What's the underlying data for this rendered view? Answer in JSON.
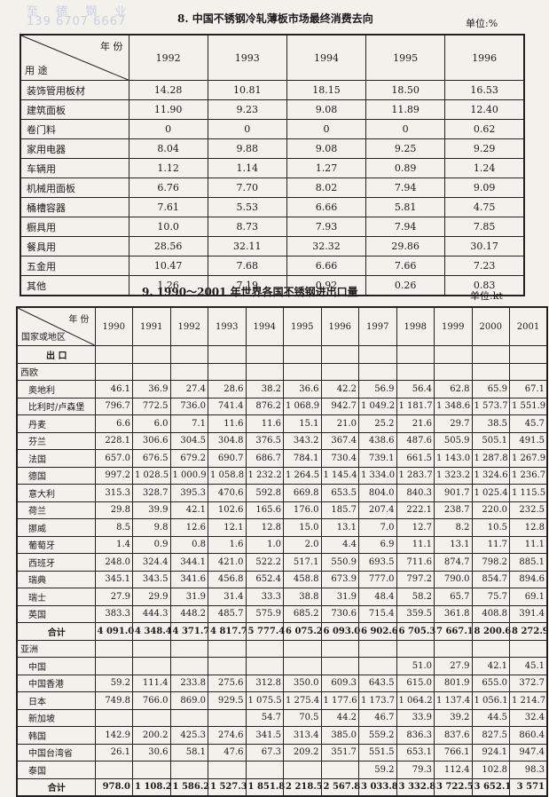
{
  "watermark": {
    "line1": "至 德 钢 业",
    "line2": "139 6707 6667"
  },
  "table1": {
    "title": "8. 中国不锈钢冷轧薄板市场最终消费去向",
    "unit": "单位:%",
    "corner_top": "年 份",
    "corner_bottom": "用 途",
    "years": [
      "1992",
      "1993",
      "1994",
      "1995",
      "1996"
    ],
    "rows": [
      {
        "label": "装饰管用板材",
        "values": [
          "14.28",
          "10.81",
          "18.15",
          "18.50",
          "16.53"
        ]
      },
      {
        "label": "建筑面板",
        "values": [
          "11.90",
          "9.23",
          "9.08",
          "11.89",
          "12.40"
        ]
      },
      {
        "label": "卷门料",
        "values": [
          "0",
          "0",
          "0",
          "0",
          "0.62"
        ]
      },
      {
        "label": "家用电器",
        "values": [
          "8.04",
          "9.88",
          "9.08",
          "9.25",
          "9.29"
        ]
      },
      {
        "label": "车辆用",
        "values": [
          "1.12",
          "1.14",
          "1.27",
          "0.89",
          "1.24"
        ]
      },
      {
        "label": "机械用面板",
        "values": [
          "6.76",
          "7.70",
          "8.02",
          "7.94",
          "9.09"
        ]
      },
      {
        "label": "桶槽容器",
        "values": [
          "7.61",
          "5.53",
          "6.66",
          "5.81",
          "4.75"
        ]
      },
      {
        "label": "橱具用",
        "values": [
          "10.0",
          "8.73",
          "7.93",
          "7.94",
          "7.85"
        ]
      },
      {
        "label": "餐具用",
        "values": [
          "28.56",
          "32.11",
          "32.32",
          "29.86",
          "30.17"
        ]
      },
      {
        "label": "五金用",
        "values": [
          "10.47",
          "7.68",
          "6.66",
          "7.66",
          "7.23"
        ]
      },
      {
        "label": "其他",
        "values": [
          "1.26",
          "7.19",
          "0.92",
          "0.26",
          "0.83"
        ]
      }
    ]
  },
  "table2": {
    "title": "9. 1990～2001 年世界各国不锈钢进出口量",
    "unit": "单位:kt",
    "corner_top": "年 份",
    "corner_bottom": "国家或地区",
    "years": [
      "1990",
      "1991",
      "1992",
      "1993",
      "1994",
      "1995",
      "1996",
      "1997",
      "1998",
      "1999",
      "2000",
      "2001"
    ],
    "rows": [
      {
        "label": "出 口",
        "type": "section"
      },
      {
        "label": "西欧",
        "type": "region"
      },
      {
        "label": "奥地利",
        "values": [
          "46.1",
          "36.9",
          "27.4",
          "28.6",
          "38.2",
          "36.6",
          "42.2",
          "56.9",
          "56.4",
          "62.8",
          "65.9",
          "67.1"
        ]
      },
      {
        "label": "比利时/卢森堡",
        "values": [
          "796.7",
          "772.5",
          "736.0",
          "741.4",
          "876.2",
          "1 068.9",
          "942.7",
          "1 049.2",
          "1 181.7",
          "1 348.6",
          "1 573.7",
          "1 551.9"
        ]
      },
      {
        "label": "丹麦",
        "values": [
          "6.6",
          "6.0",
          "7.1",
          "11.6",
          "11.6",
          "15.1",
          "21.0",
          "25.2",
          "21.6",
          "29.7",
          "38.5",
          "45.7"
        ]
      },
      {
        "label": "芬兰",
        "values": [
          "228.1",
          "306.6",
          "304.5",
          "304.8",
          "376.5",
          "343.2",
          "367.4",
          "438.6",
          "487.6",
          "505.9",
          "505.1",
          "491.5"
        ]
      },
      {
        "label": "法国",
        "values": [
          "657.0",
          "676.5",
          "679.2",
          "690.7",
          "686.7",
          "784.1",
          "730.4",
          "739.1",
          "661.5",
          "1 143.0",
          "1 287.8",
          "1 267.9"
        ]
      },
      {
        "label": "德国",
        "values": [
          "997.2",
          "1 028.5",
          "1 000.9",
          "1 058.8",
          "1 232.2",
          "1 264.5",
          "1 145.4",
          "1 334.0",
          "1 283.7",
          "1 323.2",
          "1 324.6",
          "1 236.7"
        ]
      },
      {
        "label": "意大利",
        "values": [
          "315.3",
          "328.7",
          "395.3",
          "470.6",
          "592.8",
          "669.8",
          "653.5",
          "804.0",
          "840.3",
          "901.7",
          "1 025.4",
          "1 115.5"
        ]
      },
      {
        "label": "荷兰",
        "values": [
          "29.8",
          "39.9",
          "42.1",
          "102.6",
          "165.6",
          "176.0",
          "185.7",
          "207.4",
          "222.1",
          "238.7",
          "220.0",
          "232.5"
        ]
      },
      {
        "label": "挪威",
        "values": [
          "8.5",
          "9.8",
          "12.6",
          "12.1",
          "12.8",
          "15.0",
          "13.1",
          "7.0",
          "12.7",
          "8.2",
          "10.5",
          "12.8"
        ]
      },
      {
        "label": "葡萄牙",
        "values": [
          "1.4",
          "0.9",
          "0.8",
          "1.6",
          "1.0",
          "2.0",
          "4.4",
          "6.9",
          "11.1",
          "13.1",
          "11.7",
          "11.1"
        ]
      },
      {
        "label": "西班牙",
        "values": [
          "248.0",
          "324.4",
          "344.1",
          "421.0",
          "522.2",
          "517.1",
          "550.9",
          "693.5",
          "711.6",
          "874.7",
          "798.2",
          "885.1"
        ]
      },
      {
        "label": "瑞典",
        "values": [
          "345.1",
          "343.5",
          "341.6",
          "456.8",
          "652.4",
          "458.8",
          "673.9",
          "777.0",
          "797.2",
          "790.0",
          "854.7",
          "894.6"
        ]
      },
      {
        "label": "瑞士",
        "values": [
          "27.9",
          "29.9",
          "31.9",
          "31.4",
          "33.3",
          "38.8",
          "31.9",
          "48.4",
          "58.2",
          "65.7",
          "75.7",
          "69.1"
        ]
      },
      {
        "label": "英国",
        "values": [
          "383.3",
          "444.3",
          "448.2",
          "485.7",
          "575.9",
          "685.2",
          "730.6",
          "715.4",
          "359.5",
          "361.8",
          "408.8",
          "391.4"
        ]
      },
      {
        "label": "合计",
        "type": "sum",
        "values": [
          "4 091.0",
          "4 348.4",
          "4 371.7",
          "4 817.7",
          "5 777.4",
          "6 075.2",
          "6 093.0",
          "6 902.6",
          "6 705.3",
          "7 667.1",
          "8 200.6",
          "8 272.9"
        ]
      },
      {
        "label": "亚洲",
        "type": "region"
      },
      {
        "label": "中国",
        "values": [
          "",
          "",
          "",
          "",
          "",
          "",
          "",
          "",
          "51.0",
          "27.9",
          "42.1",
          "45.1"
        ]
      },
      {
        "label": "中国香港",
        "values": [
          "59.2",
          "111.4",
          "233.8",
          "275.6",
          "312.8",
          "350.0",
          "609.3",
          "643.5",
          "615.0",
          "801.9",
          "655.0",
          "372.7"
        ]
      },
      {
        "label": "日本",
        "values": [
          "749.8",
          "766.0",
          "869.0",
          "929.5",
          "1 075.5",
          "1 275.4",
          "1 177.6",
          "1 173.7",
          "1 064.2",
          "1 137.4",
          "1 056.1",
          "1 214.7"
        ]
      },
      {
        "label": "新加坡",
        "values": [
          "",
          "",
          "",
          "",
          "54.7",
          "70.5",
          "44.2",
          "46.7",
          "33.9",
          "39.2",
          "44.5",
          "32.4"
        ]
      },
      {
        "label": "韩国",
        "values": [
          "142.9",
          "200.2",
          "425.3",
          "274.6",
          "341.5",
          "313.4",
          "385.0",
          "559.2",
          "836.3",
          "837.6",
          "827.5",
          "860.4"
        ]
      },
      {
        "label": "中国台湾省",
        "values": [
          "26.1",
          "30.6",
          "58.1",
          "47.6",
          "67.3",
          "209.2",
          "351.7",
          "551.5",
          "653.1",
          "766.1",
          "924.1",
          "947.4"
        ]
      },
      {
        "label": "泰国",
        "values": [
          "",
          "",
          "",
          "",
          "",
          "",
          "",
          "59.2",
          "79.3",
          "112.4",
          "102.8",
          "98.3"
        ]
      },
      {
        "label": "合计",
        "type": "sum",
        "values": [
          "978.0",
          "1 108.2",
          "1 586.2",
          "1 527.3",
          "1 851.8",
          "2 218.5",
          "2 567.8",
          "3 033.8",
          "3 332.8",
          "3 722.5",
          "3 652.1",
          "3 571"
        ]
      }
    ]
  }
}
